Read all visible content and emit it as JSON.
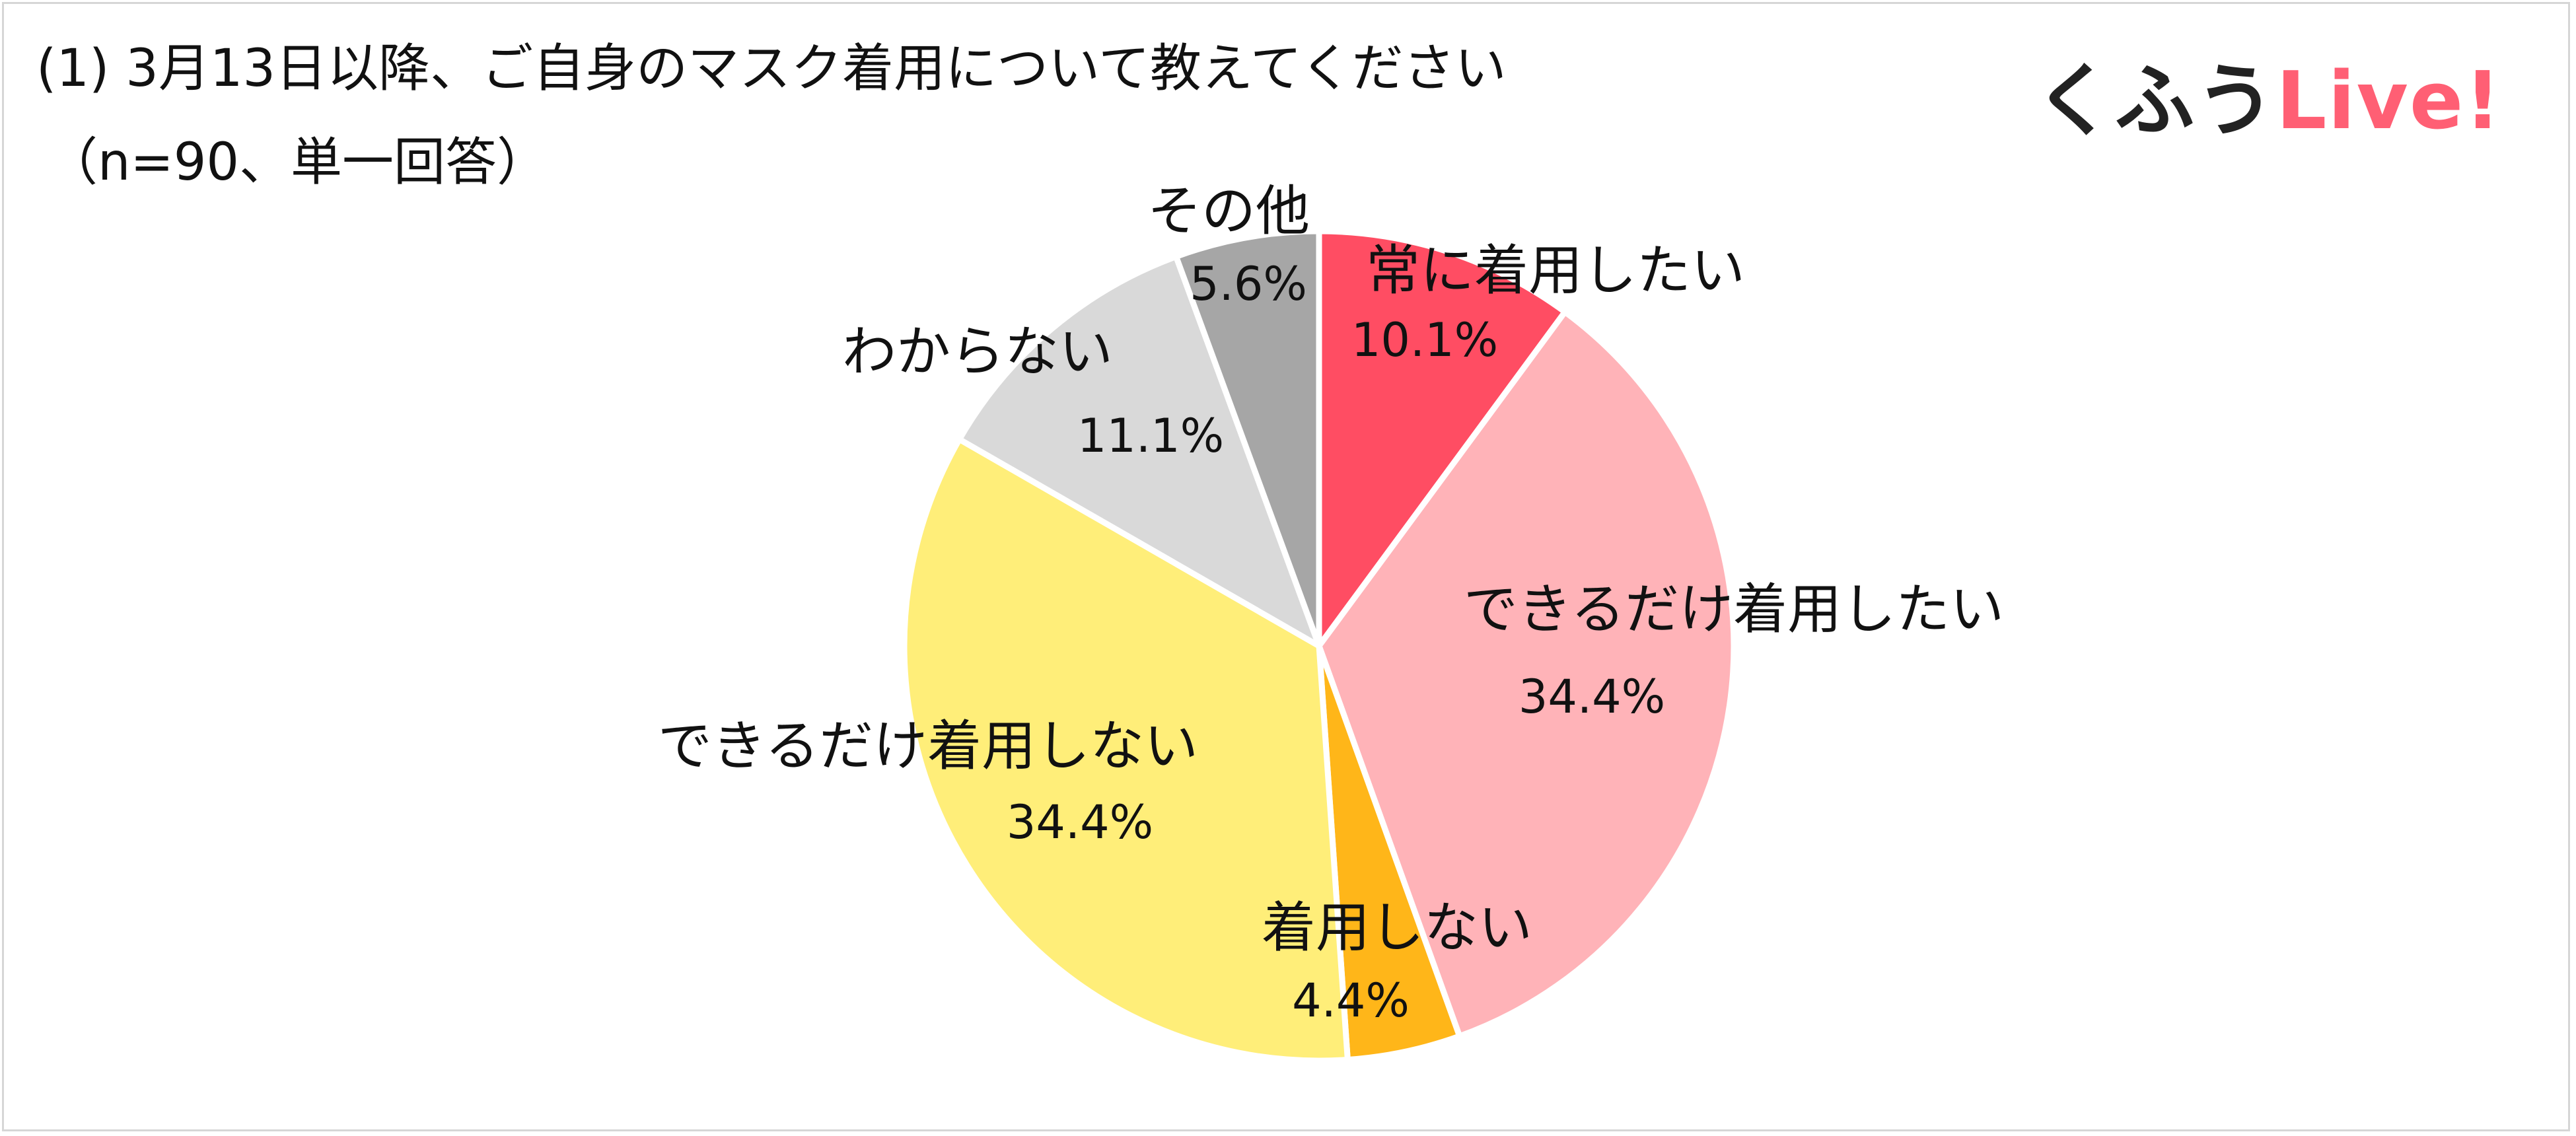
{
  "header": {
    "title": "(1) 3月13日以降、ご自身のマスク着用について教えてください",
    "subtitle": "（n=90、単一回答）"
  },
  "logo": {
    "part1": "くふう",
    "part2": "Live!"
  },
  "chart_data": {
    "type": "pie",
    "title": "(1) 3月13日以降、ご自身のマスク着用について教えてください",
    "subtitle": "（n=90、単一回答）",
    "start": "12 o'clock",
    "direction": "clockwise",
    "slices": [
      {
        "label": "常に着用したい",
        "value": 10.1,
        "display": "10.1%",
        "color": "#ff4d63"
      },
      {
        "label": "できるだけ着用したい",
        "value": 34.4,
        "display": "34.4%",
        "color": "#ffb3b8"
      },
      {
        "label": "着用しない",
        "value": 4.4,
        "display": "4.4%",
        "color": "#ffb619"
      },
      {
        "label": "できるだけ着用しない",
        "value": 34.4,
        "display": "34.4%",
        "color": "#ffee79"
      },
      {
        "label": "わからない",
        "value": 11.1,
        "display": "11.1%",
        "color": "#d9d9d9"
      },
      {
        "label": "その他",
        "value": 5.6,
        "display": "5.6%",
        "color": "#a6a6a6"
      }
    ]
  }
}
